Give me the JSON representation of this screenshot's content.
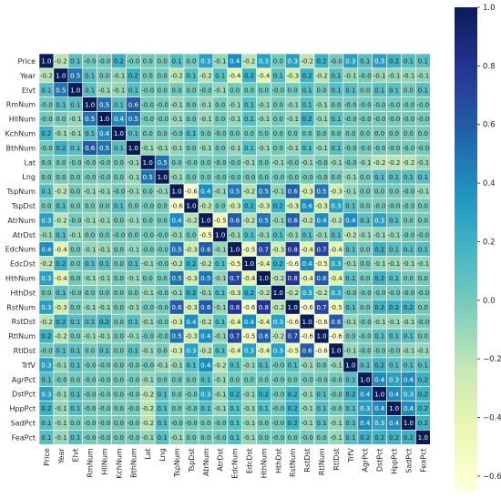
{
  "chart_data": {
    "type": "heatmap",
    "variables": [
      "Price",
      "Year",
      "Elvt",
      "RmNum",
      "HllNum",
      "KchNum",
      "BthNum",
      "Lat",
      "Lng",
      "TspNum",
      "TspDst",
      "AtrNum",
      "AtrDst",
      "EdcNum",
      "EdcDst",
      "HthNum",
      "HthDst",
      "RstNum",
      "RstDst",
      "RtlNum",
      "RtlDst",
      "TrfV",
      "AgrPct",
      "DstPct",
      "HppPct",
      "SadPct",
      "FeaPct"
    ],
    "matrix": [
      [
        1.0,
        -0.2,
        0.1,
        -0.0,
        -0.0,
        0.2,
        -0.0,
        0.0,
        0.0,
        0.1,
        0.0,
        0.3,
        -0.1,
        0.4,
        -0.2,
        0.3,
        0.0,
        0.3,
        -0.2,
        0.2,
        -0.0,
        0.3,
        0.1,
        0.3,
        0.2,
        0.1,
        0.1
      ],
      [
        -0.2,
        1.0,
        0.5,
        0.1,
        0.0,
        -0.1,
        0.2,
        0.0,
        0.0,
        -0.2,
        0.1,
        -0.2,
        0.1,
        -0.4,
        0.2,
        -0.4,
        0.1,
        -0.3,
        0.2,
        -0.2,
        0.1,
        -0.1,
        -0.0,
        -0.1,
        -0.1,
        -0.1,
        -0.1
      ],
      [
        0.1,
        0.5,
        1.0,
        0.1,
        -0.1,
        -0.1,
        0.1,
        -0.0,
        0.0,
        0.0,
        0.0,
        -0.0,
        -0.1,
        0.0,
        0.0,
        0.0,
        -0.0,
        0.0,
        0.1,
        0.0,
        0.1,
        0.1,
        0.0,
        0.1,
        0.1,
        0.0,
        0.1
      ],
      [
        -0.0,
        0.1,
        0.1,
        1.0,
        0.5,
        0.1,
        0.6,
        -0.0,
        -0.0,
        -0.1,
        0.0,
        -0.1,
        0.0,
        -0.1,
        0.1,
        -0.1,
        0.0,
        -0.1,
        0.1,
        -0.1,
        0.0,
        -0.0,
        -0.0,
        -0.0,
        -0.0,
        -0.0,
        -0.0
      ],
      [
        -0.0,
        0.0,
        -0.1,
        0.5,
        1.0,
        0.4,
        0.5,
        -0.0,
        -0.0,
        -0.1,
        0.0,
        -0.1,
        0.0,
        -0.1,
        0.1,
        -0.1,
        0.0,
        -0.1,
        0.2,
        -0.1,
        0.1,
        -0.0,
        -0.0,
        -0.0,
        -0.0,
        -0.0,
        -0.0
      ],
      [
        0.2,
        -0.1,
        -0.1,
        0.1,
        0.4,
        1.0,
        0.1,
        0.0,
        0.0,
        -0.0,
        0.1,
        0.0,
        -0.0,
        0.0,
        0.0,
        0.0,
        0.0,
        0.0,
        0.0,
        0.0,
        0.0,
        0.0,
        0.0,
        0.0,
        0.0,
        0.0,
        0.0
      ],
      [
        -0.0,
        0.2,
        0.1,
        0.6,
        0.5,
        0.1,
        1.0,
        -0.1,
        -0.1,
        -0.1,
        0.0,
        -0.1,
        0.0,
        -0.1,
        0.1,
        -0.1,
        0.0,
        -0.1,
        0.1,
        -0.1,
        0.1,
        -0.0,
        -0.0,
        -0.0,
        -0.0,
        -0.0,
        -0.0
      ],
      [
        0.0,
        0.0,
        -0.0,
        -0.0,
        -0.0,
        0.0,
        -0.1,
        1.0,
        0.5,
        0.0,
        -0.0,
        0.0,
        -0.0,
        -0.0,
        -0.1,
        0.0,
        -0.1,
        -0.0,
        -0.1,
        -0.0,
        -0.1,
        -0.0,
        -0.1,
        -0.2,
        -0.2,
        -0.2,
        -0.1
      ],
      [
        0.0,
        0.0,
        0.0,
        -0.0,
        -0.0,
        0.0,
        -0.1,
        0.5,
        1.0,
        -0.1,
        0.0,
        0.0,
        -0.0,
        -0.0,
        -0.0,
        0.0,
        -0.0,
        -0.0,
        -0.0,
        -0.0,
        0.0,
        -0.1,
        0.0,
        0.1,
        0.1,
        0.1,
        0.1
      ],
      [
        0.1,
        -0.2,
        0.0,
        -0.1,
        -0.1,
        -0.0,
        -0.1,
        0.0,
        -0.1,
        1.0,
        -0.6,
        0.4,
        -0.1,
        0.5,
        -0.2,
        0.5,
        -0.1,
        0.6,
        -0.3,
        0.5,
        -0.3,
        -0.1,
        0.0,
        0.0,
        0.0,
        -0.0,
        -0.1
      ],
      [
        0.0,
        0.1,
        0.0,
        0.0,
        0.0,
        0.1,
        0.0,
        -0.0,
        0.0,
        -0.6,
        1.0,
        -0.2,
        0.0,
        -0.3,
        0.2,
        -0.3,
        0.2,
        -0.3,
        0.4,
        -0.3,
        0.3,
        0.1,
        0.0,
        -0.0,
        -0.0,
        -0.0,
        0.0
      ],
      [
        0.3,
        -0.2,
        -0.0,
        -0.1,
        -0.1,
        0.0,
        -0.1,
        0.0,
        0.0,
        0.4,
        -0.2,
        1.0,
        -0.5,
        0.6,
        -0.2,
        0.5,
        -0.1,
        0.6,
        -0.2,
        0.4,
        -0.2,
        0.4,
        0.1,
        0.3,
        0.1,
        0.0,
        0.0
      ],
      [
        -0.1,
        0.1,
        -0.1,
        0.0,
        0.0,
        -0.0,
        0.0,
        -0.0,
        -0.0,
        -0.1,
        0.0,
        -0.5,
        1.0,
        -0.1,
        0.1,
        -0.1,
        0.1,
        -0.1,
        0.1,
        -0.1,
        0.1,
        -0.2,
        -0.1,
        -0.1,
        -0.1,
        -0.0,
        -0.0
      ],
      [
        0.4,
        -0.4,
        0.0,
        -0.1,
        -0.1,
        0.0,
        -0.1,
        -0.0,
        -0.0,
        0.5,
        -0.3,
        0.6,
        -0.1,
        1.0,
        -0.5,
        0.7,
        -0.3,
        0.8,
        -0.4,
        0.7,
        -0.4,
        0.1,
        0.0,
        0.2,
        0.1,
        0.1,
        0.1
      ],
      [
        -0.2,
        0.2,
        0.0,
        0.1,
        0.1,
        0.0,
        0.1,
        -0.1,
        -0.0,
        -0.2,
        0.2,
        -0.2,
        0.1,
        -0.5,
        1.0,
        -0.4,
        0.2,
        -0.6,
        0.4,
        -0.5,
        0.3,
        -0.1,
        0.0,
        -0.1,
        -0.1,
        -0.1,
        -0.1
      ],
      [
        0.3,
        -0.4,
        0.0,
        -0.1,
        -0.1,
        0.0,
        -0.1,
        0.0,
        0.0,
        0.5,
        -0.3,
        0.5,
        -0.1,
        0.7,
        -0.4,
        1.0,
        -0.2,
        0.8,
        -0.4,
        0.6,
        -0.4,
        0.1,
        0.0,
        0.2,
        0.1,
        0.0,
        0.0
      ],
      [
        0.0,
        0.1,
        -0.0,
        0.0,
        0.0,
        0.0,
        0.0,
        -0.1,
        -0.0,
        -0.1,
        0.2,
        -0.1,
        0.1,
        -0.3,
        0.2,
        -0.2,
        1.0,
        -0.2,
        0.3,
        -0.2,
        0.3,
        -0.0,
        -0.0,
        -0.0,
        -0.0,
        -0.0,
        -0.0
      ],
      [
        0.3,
        -0.3,
        0.0,
        -0.1,
        -0.1,
        0.0,
        -0.1,
        -0.0,
        -0.0,
        0.6,
        -0.3,
        0.6,
        -0.1,
        0.8,
        -0.6,
        0.8,
        -0.2,
        1.0,
        -0.6,
        0.7,
        -0.5,
        0.1,
        0.0,
        0.2,
        0.2,
        0.2,
        0.0
      ],
      [
        -0.2,
        0.2,
        0.1,
        0.1,
        0.2,
        0.0,
        0.1,
        -0.1,
        -0.0,
        -0.3,
        0.4,
        -0.2,
        0.1,
        -0.4,
        0.4,
        -0.4,
        0.3,
        -0.6,
        1.0,
        -0.6,
        0.6,
        -0.1,
        -0.0,
        -0.1,
        -0.1,
        -0.1,
        -0.0
      ],
      [
        0.2,
        -0.2,
        0.0,
        -0.1,
        -0.1,
        0.0,
        -0.1,
        -0.0,
        -0.0,
        0.5,
        -0.3,
        0.4,
        -0.1,
        0.7,
        -0.5,
        0.6,
        -0.2,
        0.7,
        -0.6,
        1.0,
        -0.6,
        0.0,
        -0.0,
        0.1,
        0.1,
        0.1,
        0.0
      ],
      [
        -0.0,
        0.1,
        0.1,
        0.0,
        0.1,
        0.0,
        0.1,
        -0.1,
        0.0,
        -0.3,
        0.3,
        -0.2,
        0.1,
        -0.4,
        0.3,
        -0.4,
        0.3,
        -0.5,
        0.6,
        -0.6,
        1.0,
        -0.1,
        -0.0,
        -0.0,
        -0.0,
        -0.1,
        -0.1
      ],
      [
        0.3,
        -0.1,
        0.1,
        -0.0,
        -0.0,
        0.0,
        -0.0,
        -0.0,
        -0.1,
        -0.1,
        0.1,
        0.4,
        -0.2,
        0.1,
        -0.1,
        0.1,
        -0.0,
        0.1,
        -0.1,
        0.0,
        -0.1,
        1.0,
        0.1,
        0.2,
        0.1,
        0.1,
        0.1
      ],
      [
        0.1,
        -0.0,
        0.0,
        -0.0,
        -0.0,
        0.0,
        -0.0,
        -0.1,
        0.0,
        0.0,
        0.0,
        0.1,
        -0.1,
        0.0,
        0.0,
        0.0,
        -0.0,
        0.0,
        -0.0,
        -0.0,
        -0.0,
        0.1,
        1.0,
        0.4,
        0.3,
        0.4,
        0.2
      ],
      [
        0.3,
        -0.1,
        0.1,
        -0.0,
        -0.0,
        0.0,
        -0.0,
        -0.2,
        0.1,
        0.0,
        -0.0,
        0.3,
        -0.1,
        0.2,
        -0.1,
        0.2,
        -0.0,
        0.2,
        -0.1,
        0.1,
        -0.0,
        0.2,
        0.4,
        1.0,
        0.4,
        0.3,
        0.2
      ],
      [
        0.2,
        -0.1,
        0.1,
        -0.0,
        -0.0,
        0.0,
        -0.0,
        -0.2,
        0.1,
        0.0,
        -0.0,
        0.1,
        -0.1,
        0.1,
        -0.1,
        0.1,
        -0.0,
        0.2,
        -0.1,
        0.1,
        -0.0,
        0.1,
        0.3,
        0.4,
        1.0,
        0.4,
        0.2
      ],
      [
        0.1,
        -0.1,
        0.0,
        -0.0,
        -0.0,
        0.0,
        -0.0,
        -0.2,
        0.1,
        -0.0,
        -0.0,
        0.0,
        -0.0,
        0.1,
        -0.1,
        0.0,
        -0.0,
        0.2,
        -0.1,
        0.1,
        -0.1,
        0.1,
        0.4,
        0.3,
        0.4,
        1.0,
        0.2
      ],
      [
        0.1,
        -0.1,
        0.1,
        -0.0,
        -0.0,
        0.0,
        -0.0,
        -0.1,
        0.1,
        -0.1,
        0.0,
        0.0,
        -0.0,
        0.1,
        -0.1,
        0.0,
        -0.0,
        0.0,
        -0.0,
        0.0,
        -0.1,
        0.1,
        0.2,
        0.2,
        0.2,
        0.2,
        1.0
      ]
    ],
    "colormap": "YlGnBu",
    "vmin": -0.65,
    "vmax": 1.0,
    "colorbar_ticks": [
      1.0,
      0.8,
      0.6,
      0.4,
      0.2,
      0.0,
      -0.2,
      -0.4,
      -0.6
    ],
    "colorbar_labels": [
      "1.0",
      "0.8",
      "0.6",
      "0.4",
      "0.2",
      "0.0",
      "−0.2",
      "−0.4",
      "−0.6"
    ],
    "annotated": true,
    "value_format": "one-decimal",
    "title": "",
    "xlabel": "",
    "ylabel": ""
  },
  "colors": {
    "background": "#ffffff",
    "grid_line": "#ffffff",
    "label_text": "#262626",
    "dark_cell_text": "#ffffff",
    "light_cell_text": "#262626",
    "colorbar_border": "#cccccc"
  }
}
